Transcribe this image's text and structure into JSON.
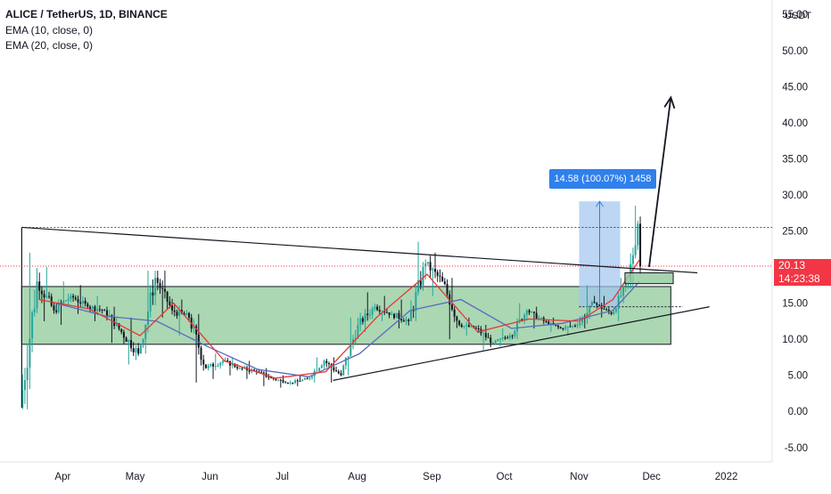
{
  "legend": {
    "symbol": "ALICE / TetherUS, 1D, BINANCE",
    "ema10": "EMA (10, close, 0)",
    "ema20": "EMA (20, close, 0)"
  },
  "axis": {
    "currency": "USDT",
    "price_ticks": [
      "55.00",
      "50.00",
      "45.00",
      "40.00",
      "35.00",
      "30.00",
      "25.00",
      "20.00",
      "15.00",
      "10.00",
      "5.00",
      "0.00",
      "-5.00"
    ],
    "time_ticks": [
      "Apr",
      "May",
      "Jun",
      "Jul",
      "Aug",
      "Sep",
      "Oct",
      "Nov",
      "Dec",
      "2022"
    ]
  },
  "last_price": {
    "value": "20.13",
    "countdown": "14:23:38"
  },
  "measure": {
    "label": "14.58 (100.07%) 1458"
  },
  "colors": {
    "up": "#26a69a",
    "down": "#131722",
    "ema10": "#e53935",
    "ema20": "#5b6bbf",
    "box_fill": "#8fc99a",
    "measure_fill": "#9fc5f0",
    "last_price": "#f23645"
  },
  "chart_data": {
    "type": "candlestick",
    "title": "ALICE / TetherUS, 1D, BINANCE",
    "ylim": [
      -7,
      57
    ],
    "y_unit": "USDT",
    "xlim": [
      "2021-03-06",
      "2022-01-20"
    ],
    "series_ohlc_weekly_approx": [
      {
        "date": "2021-03-15",
        "open": 0.5,
        "high": 22.0,
        "low": 0.3,
        "close": 18.0
      },
      {
        "date": "2021-03-22",
        "open": 18.0,
        "high": 20.0,
        "low": 12.5,
        "close": 14.0
      },
      {
        "date": "2021-03-29",
        "open": 14.0,
        "high": 18.0,
        "low": 12.0,
        "close": 16.0
      },
      {
        "date": "2021-04-05",
        "open": 16.0,
        "high": 17.5,
        "low": 13.5,
        "close": 14.5
      },
      {
        "date": "2021-04-12",
        "open": 14.5,
        "high": 16.0,
        "low": 12.5,
        "close": 14.0
      },
      {
        "date": "2021-04-19",
        "open": 14.0,
        "high": 14.5,
        "low": 9.5,
        "close": 11.0
      },
      {
        "date": "2021-04-26",
        "open": 11.0,
        "high": 13.0,
        "low": 6.5,
        "close": 8.0
      },
      {
        "date": "2021-05-03",
        "open": 8.0,
        "high": 19.5,
        "low": 8.0,
        "close": 18.5
      },
      {
        "date": "2021-05-10",
        "open": 18.5,
        "high": 19.5,
        "low": 13.0,
        "close": 14.0
      },
      {
        "date": "2021-05-17",
        "open": 14.0,
        "high": 15.5,
        "low": 10.5,
        "close": 13.0
      },
      {
        "date": "2021-05-24",
        "open": 13.0,
        "high": 13.5,
        "low": 4.0,
        "close": 6.0
      },
      {
        "date": "2021-05-31",
        "open": 6.0,
        "high": 8.0,
        "low": 4.5,
        "close": 7.0
      },
      {
        "date": "2021-06-07",
        "open": 7.0,
        "high": 7.5,
        "low": 5.0,
        "close": 6.0
      },
      {
        "date": "2021-06-14",
        "open": 6.0,
        "high": 7.0,
        "low": 4.5,
        "close": 5.5
      },
      {
        "date": "2021-06-21",
        "open": 5.5,
        "high": 6.0,
        "low": 3.5,
        "close": 4.5
      },
      {
        "date": "2021-06-28",
        "open": 4.5,
        "high": 5.0,
        "low": 3.3,
        "close": 4.0
      },
      {
        "date": "2021-07-05",
        "open": 4.0,
        "high": 5.0,
        "low": 3.5,
        "close": 4.5
      },
      {
        "date": "2021-07-12",
        "open": 4.5,
        "high": 7.5,
        "low": 4.0,
        "close": 7.0
      },
      {
        "date": "2021-07-19",
        "open": 7.0,
        "high": 7.5,
        "low": 4.0,
        "close": 5.0
      },
      {
        "date": "2021-07-26",
        "open": 5.0,
        "high": 13.0,
        "low": 5.0,
        "close": 12.0
      },
      {
        "date": "2021-08-02",
        "open": 12.0,
        "high": 16.5,
        "low": 11.0,
        "close": 14.5
      },
      {
        "date": "2021-08-09",
        "open": 14.5,
        "high": 16.0,
        "low": 12.5,
        "close": 13.5
      },
      {
        "date": "2021-08-16",
        "open": 13.5,
        "high": 15.5,
        "low": 11.5,
        "close": 12.5
      },
      {
        "date": "2021-08-23",
        "open": 12.5,
        "high": 23.5,
        "low": 12.5,
        "close": 20.5
      },
      {
        "date": "2021-08-30",
        "open": 20.5,
        "high": 22.0,
        "low": 16.0,
        "close": 18.0
      },
      {
        "date": "2021-09-06",
        "open": 18.0,
        "high": 18.5,
        "low": 10.0,
        "close": 12.0
      },
      {
        "date": "2021-09-13",
        "open": 12.0,
        "high": 13.0,
        "low": 10.5,
        "close": 11.5
      },
      {
        "date": "2021-09-20",
        "open": 11.5,
        "high": 12.0,
        "low": 8.5,
        "close": 9.5
      },
      {
        "date": "2021-09-27",
        "open": 9.5,
        "high": 11.5,
        "low": 9.0,
        "close": 10.5
      },
      {
        "date": "2021-10-04",
        "open": 10.5,
        "high": 15.0,
        "low": 10.0,
        "close": 14.0
      },
      {
        "date": "2021-10-11",
        "open": 14.0,
        "high": 14.5,
        "low": 11.5,
        "close": 12.5
      },
      {
        "date": "2021-10-18",
        "open": 12.5,
        "high": 13.0,
        "low": 11.0,
        "close": 11.5
      },
      {
        "date": "2021-10-25",
        "open": 11.5,
        "high": 12.5,
        "low": 10.5,
        "close": 12.0
      },
      {
        "date": "2021-11-01",
        "open": 12.0,
        "high": 17.5,
        "low": 11.5,
        "close": 15.0
      },
      {
        "date": "2021-11-08",
        "open": 15.0,
        "high": 16.0,
        "low": 13.0,
        "close": 13.5
      },
      {
        "date": "2021-11-15",
        "open": 13.5,
        "high": 18.5,
        "low": 12.5,
        "close": 18.0
      },
      {
        "date": "2021-11-22",
        "open": 18.0,
        "high": 28.5,
        "low": 17.0,
        "close": 26.0
      },
      {
        "date": "2021-11-26",
        "open": 26.0,
        "high": 27.0,
        "low": 19.0,
        "close": 20.13
      }
    ],
    "ema10_approx": [
      {
        "date": "2021-03-22",
        "value": 15.5
      },
      {
        "date": "2021-04-12",
        "value": 14.2
      },
      {
        "date": "2021-05-03",
        "value": 10.5
      },
      {
        "date": "2021-05-17",
        "value": 15.0
      },
      {
        "date": "2021-06-07",
        "value": 7.0
      },
      {
        "date": "2021-06-28",
        "value": 4.6
      },
      {
        "date": "2021-07-19",
        "value": 5.5
      },
      {
        "date": "2021-08-09",
        "value": 13.0
      },
      {
        "date": "2021-08-30",
        "value": 19.0
      },
      {
        "date": "2021-09-20",
        "value": 11.0
      },
      {
        "date": "2021-10-11",
        "value": 12.8
      },
      {
        "date": "2021-11-01",
        "value": 12.5
      },
      {
        "date": "2021-11-15",
        "value": 15.5
      },
      {
        "date": "2021-11-26",
        "value": 21.0
      }
    ],
    "ema20_approx": [
      {
        "date": "2021-03-29",
        "value": 15.0
      },
      {
        "date": "2021-04-19",
        "value": 13.2
      },
      {
        "date": "2021-05-10",
        "value": 12.5
      },
      {
        "date": "2021-05-31",
        "value": 9.0
      },
      {
        "date": "2021-06-21",
        "value": 5.8
      },
      {
        "date": "2021-07-12",
        "value": 4.8
      },
      {
        "date": "2021-08-02",
        "value": 8.0
      },
      {
        "date": "2021-08-23",
        "value": 14.0
      },
      {
        "date": "2021-09-13",
        "value": 15.5
      },
      {
        "date": "2021-10-04",
        "value": 11.5
      },
      {
        "date": "2021-10-25",
        "value": 12.2
      },
      {
        "date": "2021-11-15",
        "value": 14.0
      },
      {
        "date": "2021-11-26",
        "value": 18.0
      }
    ],
    "drawings": {
      "range_box": {
        "x0": "2021-03-15",
        "x1": "2021-12-09",
        "y0": 9.3,
        "y1": 17.3
      },
      "descending_trendline": [
        {
          "date": "2021-03-15",
          "value": 25.5
        },
        {
          "date": "2021-12-20",
          "value": 19.2
        }
      ],
      "ascending_trendline": [
        {
          "date": "2021-07-22",
          "value": 4.3
        },
        {
          "date": "2021-12-25",
          "value": 14.5
        }
      ],
      "breakout_zone": {
        "x0": "2021-11-20",
        "x1": "2021-12-10",
        "y0": 17.7,
        "y1": 19.2
      },
      "measure_range": {
        "x0": "2021-11-01",
        "x1": "2021-11-18",
        "y0": 14.5,
        "y1": 29.1
      },
      "projection_arrow": [
        {
          "date": "2021-11-30",
          "value": 20.0
        },
        {
          "date": "2021-12-09",
          "value": 43.5
        }
      ],
      "dashed_level": 25.5,
      "last_price_line": 20.13,
      "midline_dotted": {
        "x0": "2021-11-01",
        "x1": "2021-12-14",
        "value": 14.5
      }
    }
  }
}
